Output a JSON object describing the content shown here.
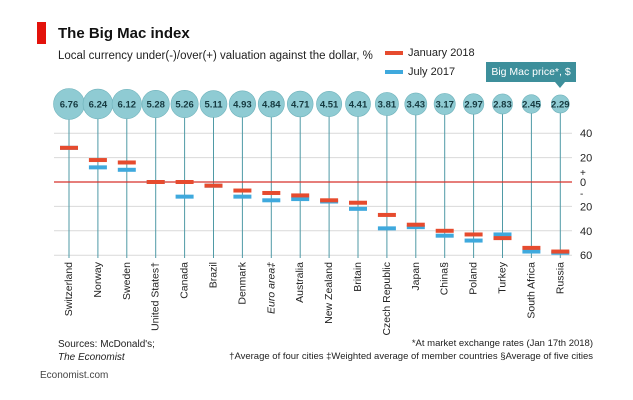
{
  "chart_data": {
    "type": "bar",
    "title": "The Big Mac index",
    "subtitle": "Local currency under(-)/over(+) valuation against the dollar, %",
    "categories": [
      "Switzerland",
      "Norway",
      "Sweden",
      "United States†",
      "Canada",
      "Brazil",
      "Denmark",
      "Euro area‡",
      "Australia",
      "New Zealand",
      "Britain",
      "Czech Republic",
      "Japan",
      "China§",
      "Poland",
      "Turkey",
      "South Africa",
      "Russia"
    ],
    "big_mac_price_label": "Big Mac price*, $",
    "big_mac_prices": [
      "6.76",
      "6.24",
      "6.12",
      "5.28",
      "5.26",
      "5.11",
      "4.93",
      "4.84",
      "4.71",
      "4.51",
      "4.41",
      "3.81",
      "3.43",
      "3.17",
      "2.97",
      "2.83",
      "2.45",
      "2.29"
    ],
    "series": [
      {
        "name": "January 2018",
        "color": "#e64b2e",
        "values": [
          28,
          18,
          16,
          0,
          0,
          -3,
          -7,
          -9,
          -11,
          -15,
          -17,
          -27,
          -35,
          -40,
          -43,
          -46,
          -54,
          -57
        ]
      },
      {
        "name": "July 2017",
        "color": "#3fa9dd",
        "values": [
          28,
          12,
          10,
          0,
          -12,
          -3,
          -12,
          -15,
          -14,
          -16,
          -22,
          -38,
          -37,
          -44,
          -48,
          -43,
          -57,
          -58
        ]
      }
    ],
    "y_ticks": [
      "40",
      "20",
      "+",
      "0",
      "-",
      "20",
      "40",
      "60"
    ],
    "ylim": [
      -60,
      40
    ],
    "legend_position": "top-right",
    "grid": true
  },
  "source_label": "Sources: McDonald's;",
  "source_italic": "The Economist",
  "footnote_1": "*At market exchange rates (Jan 17th 2018)",
  "footnote_2": "†Average of four cities  ‡Weighted average of member countries  §Average of five cities",
  "brand": "Economist.com",
  "colors": {
    "accent_red": "#e3120b",
    "bubble": "#8fcbd3",
    "bubble_stroke": "#6fb2bb",
    "grid": "#d9d9d9",
    "zero_line": "#d6312a",
    "stem": "#4f9aa6"
  }
}
